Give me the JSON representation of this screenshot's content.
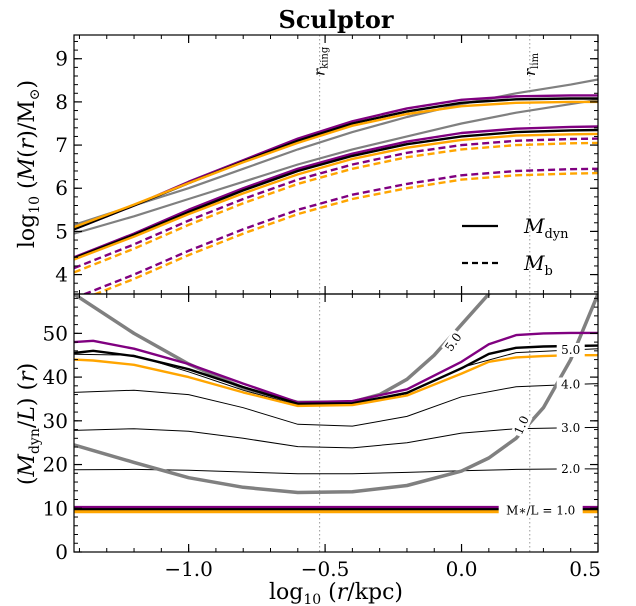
{
  "chart_data": [
    {
      "type": "line",
      "title": "Sculptor",
      "ylabel": "log10 (M(r)/M⊙)",
      "xlim": [
        -1.42,
        0.5
      ],
      "ylim": [
        3.55,
        9.55
      ],
      "yticks": [
        4,
        5,
        6,
        7,
        8,
        9
      ],
      "annotations": [
        "r_king",
        "r_lim"
      ],
      "vlines": [
        -0.52,
        0.25
      ],
      "legend": {
        "position": "bottom-right",
        "entries": [
          {
            "label": "M_dyn",
            "style": "solid"
          },
          {
            "label": "M_b",
            "style": "dashed"
          }
        ]
      },
      "series": [
        {
          "color": "#808080",
          "style": "solid",
          "x": [
            -1.42,
            -1.2,
            -1.0,
            -0.8,
            -0.6,
            -0.4,
            -0.2,
            0.0,
            0.2,
            0.4,
            0.5
          ],
          "y": [
            5.15,
            5.6,
            6.0,
            6.45,
            6.9,
            7.3,
            7.65,
            7.95,
            8.2,
            8.4,
            8.52
          ]
        },
        {
          "color": "#808080",
          "style": "solid",
          "x": [
            -1.42,
            -1.2,
            -1.0,
            -0.8,
            -0.6,
            -0.4,
            -0.2,
            0.0,
            0.2,
            0.4,
            0.5
          ],
          "y": [
            4.95,
            5.35,
            5.75,
            6.15,
            6.55,
            6.9,
            7.2,
            7.5,
            7.75,
            7.95,
            8.05
          ]
        },
        {
          "color": "#800080",
          "style": "solid",
          "x": [
            -1.42,
            -1.2,
            -1.0,
            -0.8,
            -0.6,
            -0.4,
            -0.2,
            0.0,
            0.2,
            0.4,
            0.5
          ],
          "y": [
            5.05,
            5.6,
            6.15,
            6.65,
            7.15,
            7.55,
            7.85,
            8.05,
            8.13,
            8.15,
            8.15
          ]
        },
        {
          "color": "#000000",
          "style": "solid",
          "x": [
            -1.42,
            -1.2,
            -1.0,
            -0.8,
            -0.6,
            -0.4,
            -0.2,
            0.0,
            0.2,
            0.4,
            0.5
          ],
          "y": [
            5.05,
            5.6,
            6.12,
            6.62,
            7.1,
            7.5,
            7.78,
            7.98,
            8.06,
            8.08,
            8.08
          ]
        },
        {
          "color": "#FFA500",
          "style": "solid",
          "x": [
            -1.42,
            -1.2,
            -1.0,
            -0.8,
            -0.6,
            -0.4,
            -0.2,
            0.0,
            0.2,
            0.4,
            0.5
          ],
          "y": [
            5.1,
            5.62,
            6.12,
            6.6,
            7.05,
            7.45,
            7.72,
            7.9,
            7.98,
            8.0,
            8.0
          ]
        },
        {
          "color": "#800080",
          "style": "solid",
          "x": [
            -1.42,
            -1.2,
            -1.0,
            -0.8,
            -0.6,
            -0.4,
            -0.2,
            0.0,
            0.2,
            0.4,
            0.5
          ],
          "y": [
            4.4,
            4.95,
            5.5,
            6.0,
            6.45,
            6.8,
            7.08,
            7.28,
            7.38,
            7.42,
            7.43
          ]
        },
        {
          "color": "#000000",
          "style": "solid",
          "x": [
            -1.42,
            -1.2,
            -1.0,
            -0.8,
            -0.6,
            -0.4,
            -0.2,
            0.0,
            0.2,
            0.4,
            0.5
          ],
          "y": [
            4.38,
            4.92,
            5.45,
            5.95,
            6.4,
            6.75,
            7.02,
            7.2,
            7.3,
            7.34,
            7.35
          ]
        },
        {
          "color": "#FFA500",
          "style": "solid",
          "x": [
            -1.42,
            -1.2,
            -1.0,
            -0.8,
            -0.6,
            -0.4,
            -0.2,
            0.0,
            0.2,
            0.4,
            0.5
          ],
          "y": [
            4.35,
            4.88,
            5.4,
            5.88,
            6.32,
            6.68,
            6.94,
            7.12,
            7.22,
            7.25,
            7.26
          ]
        },
        {
          "color": "#800080",
          "style": "dashed",
          "x": [
            -1.42,
            -1.2,
            -1.0,
            -0.8,
            -0.6,
            -0.4,
            -0.2,
            0.0,
            0.2,
            0.4,
            0.5
          ],
          "y": [
            4.15,
            4.7,
            5.25,
            5.75,
            6.2,
            6.55,
            6.82,
            7.0,
            7.1,
            7.14,
            7.15
          ]
        },
        {
          "color": "#FFA500",
          "style": "dashed",
          "x": [
            -1.42,
            -1.2,
            -1.0,
            -0.8,
            -0.6,
            -0.4,
            -0.2,
            0.0,
            0.2,
            0.4,
            0.5
          ],
          "y": [
            4.05,
            4.6,
            5.15,
            5.65,
            6.1,
            6.45,
            6.72,
            6.9,
            7.0,
            7.04,
            7.05
          ]
        },
        {
          "color": "#800080",
          "style": "dashed",
          "x": [
            -1.42,
            -1.2,
            -1.0,
            -0.8,
            -0.6,
            -0.4,
            -0.2,
            0.0,
            0.2,
            0.4,
            0.5
          ],
          "y": [
            3.45,
            4.0,
            4.55,
            5.05,
            5.5,
            5.85,
            6.1,
            6.3,
            6.4,
            6.44,
            6.45
          ]
        },
        {
          "color": "#FFA500",
          "style": "dashed",
          "x": [
            -1.42,
            -1.2,
            -1.0,
            -0.8,
            -0.6,
            -0.4,
            -0.2,
            0.0,
            0.2,
            0.4,
            0.5
          ],
          "y": [
            3.35,
            3.9,
            4.45,
            4.95,
            5.4,
            5.75,
            6.0,
            6.2,
            6.3,
            6.34,
            6.35
          ]
        }
      ]
    },
    {
      "type": "line",
      "xlabel": "log10 (r/kpc)",
      "ylabel": "(M_dyn/L) (r)",
      "xlim": [
        -1.42,
        0.5
      ],
      "ylim": [
        0,
        59
      ],
      "xticks": [
        -1.0,
        -0.5,
        0.0,
        0.5
      ],
      "xtick_labels": [
        "−1.0",
        "−0.5",
        "0.0",
        "0.5"
      ],
      "yticks": [
        0,
        10,
        20,
        30,
        40,
        50
      ],
      "vlines": [
        -0.52,
        0.25
      ],
      "contours": [
        {
          "label": "M∗/L = 1.0",
          "x": [
            -1.42,
            -1.0,
            -0.5,
            0.0,
            0.5
          ],
          "y": [
            9.5,
            9.5,
            9.5,
            9.5,
            9.5
          ]
        },
        {
          "label": "2.0",
          "x": [
            -1.42,
            -1.2,
            -1.0,
            -0.8,
            -0.6,
            -0.4,
            -0.2,
            0.0,
            0.2,
            0.4,
            0.5
          ],
          "y": [
            18.8,
            18.9,
            18.7,
            18.3,
            17.9,
            17.9,
            18.2,
            18.6,
            18.9,
            19.0,
            19.0
          ]
        },
        {
          "label": "3.0",
          "x": [
            -1.42,
            -1.2,
            -1.0,
            -0.8,
            -0.6,
            -0.4,
            -0.2,
            0.0,
            0.2,
            0.4,
            0.5
          ],
          "y": [
            27.8,
            28.2,
            27.6,
            26.0,
            24.1,
            23.8,
            25.0,
            27.2,
            28.2,
            28.4,
            28.5
          ]
        },
        {
          "label": "4.0",
          "x": [
            -1.42,
            -1.2,
            -1.0,
            -0.8,
            -0.6,
            -0.4,
            -0.2,
            0.0,
            0.2,
            0.4,
            0.5
          ],
          "y": [
            36.5,
            37.0,
            36.0,
            33.0,
            29.2,
            28.8,
            31.0,
            35.5,
            37.8,
            38.3,
            38.5
          ]
        },
        {
          "label": "5.0",
          "x": [
            -1.42,
            -1.2,
            -1.0,
            -0.8,
            -0.6,
            -0.4,
            -0.2,
            0.0,
            0.2,
            0.4,
            0.5
          ],
          "y": [
            45.2,
            45.0,
            41.2,
            37.0,
            33.6,
            33.8,
            36.2,
            42.2,
            45.6,
            46.2,
            46.5
          ]
        }
      ],
      "thick_curves": [
        {
          "label": "1.0",
          "x": [
            -1.42,
            -1.2,
            -1.0,
            -0.8,
            -0.6,
            -0.4,
            -0.2,
            0.0,
            0.1,
            0.2,
            0.3,
            0.4,
            0.5
          ],
          "y": [
            24.5,
            20.5,
            17.0,
            14.8,
            13.6,
            13.8,
            15.2,
            18.5,
            21.5,
            26.0,
            33.0,
            44.0,
            59.0
          ]
        },
        {
          "label": "5.0",
          "x": [
            -1.42,
            -1.2,
            -1.0,
            -0.8,
            -0.6,
            -0.4,
            -0.3,
            -0.2,
            -0.1,
            0.0,
            0.1,
            0.2
          ],
          "y": [
            59.0,
            50.0,
            43.0,
            37.5,
            34.2,
            34.3,
            36.0,
            39.5,
            45.0,
            52.0,
            59.0,
            66.0
          ]
        }
      ],
      "series": [
        {
          "color": "#800080",
          "x": [
            -1.42,
            -1.35,
            -1.2,
            -1.0,
            -0.8,
            -0.6,
            -0.4,
            -0.2,
            0.0,
            0.1,
            0.2,
            0.3,
            0.4,
            0.5
          ],
          "y": [
            48.0,
            48.3,
            46.5,
            43.0,
            38.5,
            34.2,
            34.5,
            37.2,
            43.5,
            47.5,
            49.6,
            50.0,
            50.1,
            50.1
          ]
        },
        {
          "color": "#000000",
          "x": [
            -1.42,
            -1.35,
            -1.2,
            -1.0,
            -0.8,
            -0.6,
            -0.4,
            -0.2,
            0.0,
            0.1,
            0.2,
            0.3,
            0.4,
            0.5
          ],
          "y": [
            45.5,
            46.0,
            44.8,
            41.8,
            37.7,
            33.9,
            34.0,
            36.4,
            42.0,
            45.3,
            46.7,
            47.0,
            47.1,
            47.2
          ]
        },
        {
          "color": "#FFA500",
          "x": [
            -1.42,
            -1.35,
            -1.2,
            -1.0,
            -0.8,
            -0.6,
            -0.4,
            -0.2,
            0.0,
            0.1,
            0.2,
            0.3,
            0.4,
            0.5
          ],
          "y": [
            44.0,
            43.8,
            42.8,
            40.0,
            36.5,
            33.4,
            33.6,
            35.8,
            40.8,
            43.5,
            44.5,
            44.8,
            45.0,
            45.0
          ]
        },
        {
          "color": "#800080",
          "x": [
            -1.42,
            -1.0,
            -0.5,
            0.0,
            0.5
          ],
          "y": [
            10.2,
            10.2,
            10.2,
            10.2,
            10.2
          ]
        },
        {
          "color": "#000000",
          "x": [
            -1.42,
            -1.0,
            -0.5,
            0.0,
            0.5
          ],
          "y": [
            9.7,
            9.7,
            9.7,
            9.7,
            9.7
          ]
        },
        {
          "color": "#FFA500",
          "x": [
            -1.42,
            -1.0,
            -0.5,
            0.0,
            0.5
          ],
          "y": [
            9.2,
            9.2,
            9.2,
            9.2,
            9.2
          ]
        }
      ]
    }
  ]
}
